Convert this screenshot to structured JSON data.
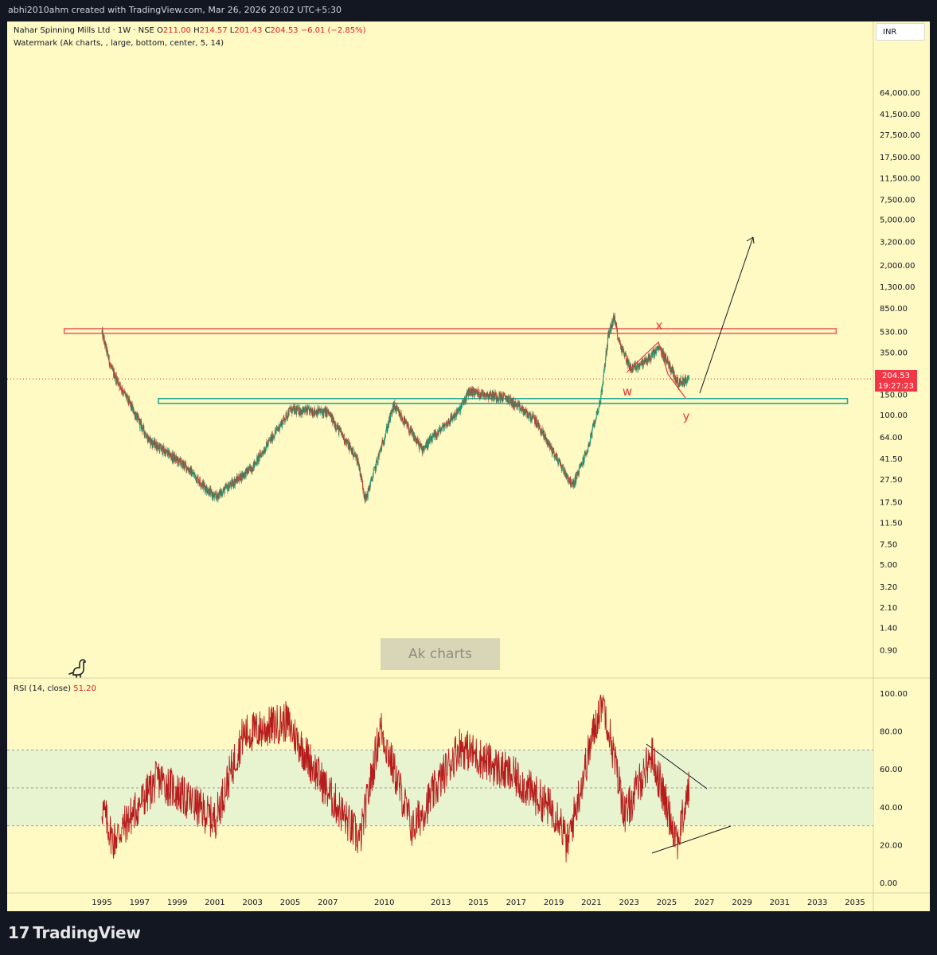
{
  "topbar": {
    "text": "abhi2010ahm created with TradingView.com, Mar 26, 2026 20:02 UTC+5:30"
  },
  "legend": {
    "symbol": "Nahar Spinning Mills Ltd · 1W · NSE",
    "o_label": "O",
    "o_value": "211.00",
    "h_label": "H",
    "h_value": "214.57",
    "l_label": "L",
    "l_value": "201.43",
    "c_label": "C",
    "c_value": "204.53",
    "change": "−6.01 (−2.85%)",
    "watermark_indicator": "Watermark (Ak charts, , large, bottom, center, 5, 14)",
    "rsi_label": "RSI (14, close)",
    "rsi_value": "51.20"
  },
  "currency": "INR",
  "price_tag": {
    "price": "204.53",
    "countdown": "19:27:23"
  },
  "watermark_text": "Ak charts",
  "annotations": {
    "w": "w",
    "x": "x",
    "y": "y"
  },
  "footer": {
    "logo": "17",
    "brand": "TradingView"
  },
  "colors": {
    "background": "#fff9c4",
    "candle_up": "#1b9e77",
    "candle_down": "#c0392b",
    "resistance_zone": "#f06060",
    "support_zone": "#26a69a",
    "rsi_line": "#b71c1c",
    "rsi_band": "#e8f3cf",
    "annotation": "#e53935"
  },
  "chart_data": [
    {
      "type": "candlestick",
      "title": "Nahar Spinning Mills Ltd · 1W · NSE",
      "scale": "log",
      "price_axis_ticks": [
        "64,000.00",
        "41,500.00",
        "27,500.00",
        "17,500.00",
        "11,500.00",
        "7,500.00",
        "5,000.00",
        "3,200.00",
        "2,000.00",
        "1,300.00",
        "850.00",
        "530.00",
        "350.00",
        "220.00",
        "150.00",
        "100.00",
        "64.00",
        "41.50",
        "27.50",
        "17.50",
        "11.50",
        "7.50",
        "5.00",
        "3.20",
        "2.10",
        "1.40",
        "0.90"
      ],
      "time_axis_ticks": [
        "1995",
        "1997",
        "1999",
        "2001",
        "2003",
        "2005",
        "2007",
        "2010",
        "2013",
        "2015",
        "2017",
        "2019",
        "2021",
        "2023",
        "2025",
        "2027",
        "2029",
        "2031",
        "2033",
        "2035"
      ],
      "key_points": [
        {
          "date": 1995.0,
          "price": 520
        },
        {
          "date": 1995.5,
          "price": 250
        },
        {
          "date": 1997.5,
          "price": 60
        },
        {
          "date": 1999.5,
          "price": 35
        },
        {
          "date": 2001.0,
          "price": 19
        },
        {
          "date": 2003.0,
          "price": 35
        },
        {
          "date": 2005.0,
          "price": 110
        },
        {
          "date": 2007.0,
          "price": 105
        },
        {
          "date": 2008.6,
          "price": 40
        },
        {
          "date": 2009.0,
          "price": 18
        },
        {
          "date": 2010.5,
          "price": 120
        },
        {
          "date": 2012.0,
          "price": 50
        },
        {
          "date": 2014.0,
          "price": 110
        },
        {
          "date": 2014.5,
          "price": 160
        },
        {
          "date": 2016.5,
          "price": 140
        },
        {
          "date": 2018.0,
          "price": 90
        },
        {
          "date": 2020.0,
          "price": 24
        },
        {
          "date": 2020.8,
          "price": 50
        },
        {
          "date": 2021.5,
          "price": 140
        },
        {
          "date": 2021.9,
          "price": 500
        },
        {
          "date": 2022.2,
          "price": 700
        },
        {
          "date": 2022.5,
          "price": 420
        },
        {
          "date": 2023.1,
          "price": 250
        },
        {
          "date": 2024.0,
          "price": 300
        },
        {
          "date": 2024.6,
          "price": 380
        },
        {
          "date": 2025.1,
          "price": 280
        },
        {
          "date": 2025.6,
          "price": 190
        },
        {
          "date": 2026.2,
          "price": 204.53
        }
      ],
      "zones": [
        {
          "name": "resistance",
          "price_low": 510,
          "price_high": 560,
          "date_start": 1993.0,
          "date_end": 2034.0
        },
        {
          "name": "support",
          "price_low": 125,
          "price_high": 138,
          "date_start": 1998.0,
          "date_end": 2034.6
        }
      ],
      "labels": [
        "w",
        "x",
        "y"
      ]
    },
    {
      "type": "line",
      "title": "RSI (14, close)",
      "ylim": [
        0,
        100
      ],
      "y_ticks": [
        "100.00",
        "80.00",
        "60.00",
        "40.00",
        "20.00",
        "0.00"
      ],
      "bands": [
        30,
        50,
        70
      ],
      "key_points": [
        {
          "date": 1995.0,
          "value": 40
        },
        {
          "date": 1995.6,
          "value": 22
        },
        {
          "date": 1998.0,
          "value": 55
        },
        {
          "date": 2001.0,
          "value": 33
        },
        {
          "date": 2002.5,
          "value": 78
        },
        {
          "date": 2004.8,
          "value": 85
        },
        {
          "date": 2007.0,
          "value": 48
        },
        {
          "date": 2008.7,
          "value": 22
        },
        {
          "date": 2009.8,
          "value": 82
        },
        {
          "date": 2011.5,
          "value": 28
        },
        {
          "date": 2014.0,
          "value": 72
        },
        {
          "date": 2017.0,
          "value": 55
        },
        {
          "date": 2019.3,
          "value": 35
        },
        {
          "date": 2019.7,
          "value": 19
        },
        {
          "date": 2021.0,
          "value": 75
        },
        {
          "date": 2021.6,
          "value": 98
        },
        {
          "date": 2022.8,
          "value": 35
        },
        {
          "date": 2024.2,
          "value": 68
        },
        {
          "date": 2025.0,
          "value": 40
        },
        {
          "date": 2025.6,
          "value": 22
        },
        {
          "date": 2026.2,
          "value": 51.2
        }
      ],
      "last_value": 51.2
    }
  ]
}
